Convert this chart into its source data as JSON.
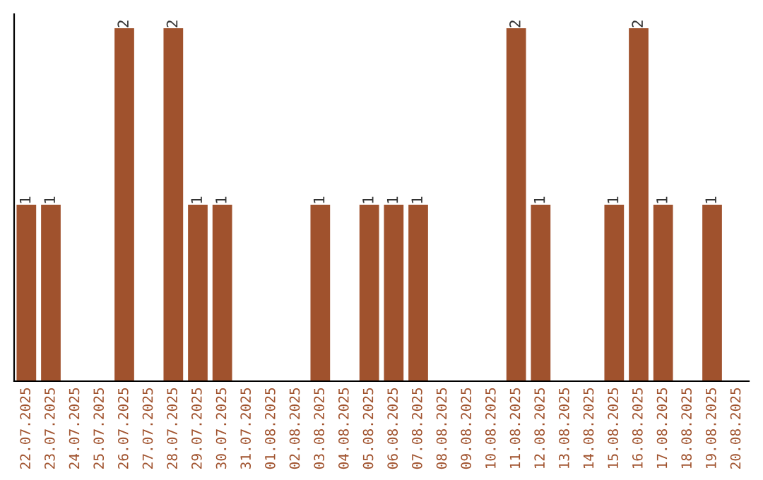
{
  "chart_data": {
    "type": "bar",
    "categories": [
      "22.07.2025",
      "23.07.2025",
      "24.07.2025",
      "25.07.2025",
      "26.07.2025",
      "27.07.2025",
      "28.07.2025",
      "29.07.2025",
      "30.07.2025",
      "31.07.2025",
      "01.08.2025",
      "02.08.2025",
      "03.08.2025",
      "04.08.2025",
      "05.08.2025",
      "06.08.2025",
      "07.08.2025",
      "08.08.2025",
      "09.08.2025",
      "10.08.2025",
      "11.08.2025",
      "12.08.2025",
      "13.08.2025",
      "14.08.2025",
      "15.08.2025",
      "16.08.2025",
      "17.08.2025",
      "18.08.2025",
      "19.08.2025",
      "20.08.2025"
    ],
    "values": [
      1,
      1,
      0,
      0,
      2,
      0,
      2,
      1,
      1,
      0,
      0,
      0,
      1,
      0,
      1,
      1,
      1,
      0,
      0,
      0,
      2,
      1,
      0,
      0,
      1,
      2,
      1,
      0,
      1,
      0
    ],
    "value_labels": [
      "1",
      "1",
      null,
      null,
      "2",
      null,
      "2",
      "1",
      "1",
      null,
      null,
      null,
      "1",
      null,
      "1",
      "1",
      "1",
      null,
      null,
      null,
      "2",
      "1",
      null,
      null,
      "1",
      "2",
      "1",
      null,
      "1",
      null
    ],
    "color": "#a0522d",
    "grid": false,
    "legend": false
  }
}
